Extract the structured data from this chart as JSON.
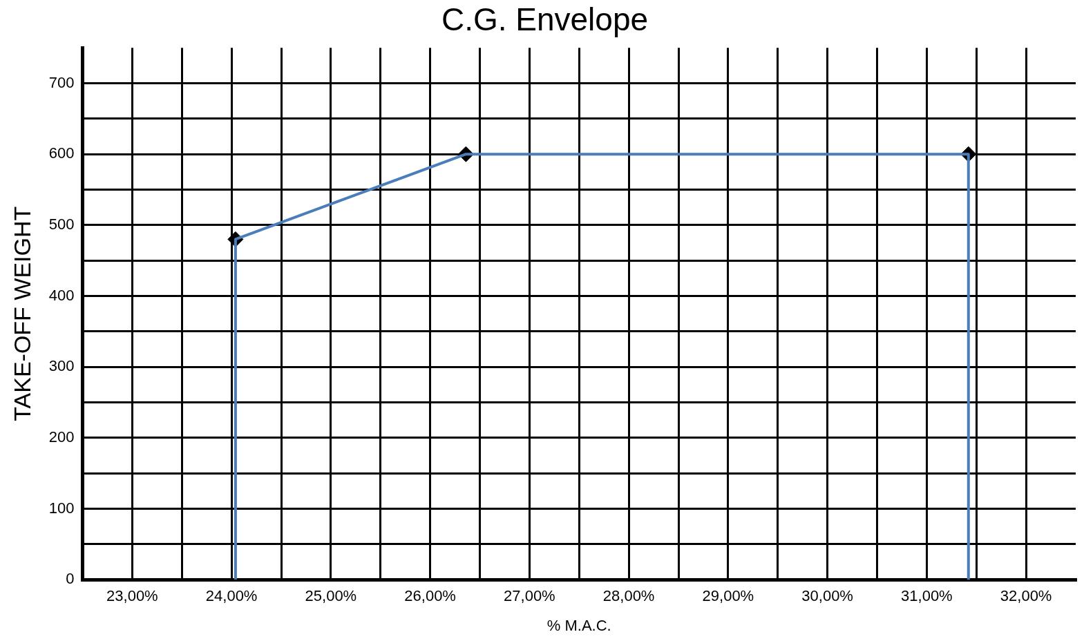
{
  "chart_data": {
    "type": "line",
    "title": "C.G. Envelope",
    "xlabel": "% M.A.C.",
    "ylabel": "TAKE-OFF WEIGHT",
    "xlim": [
      22.5,
      32.5
    ],
    "xticks": [
      {
        "value": 23,
        "label": "23,00%"
      },
      {
        "value": 23.5,
        "label": null
      },
      {
        "value": 24,
        "label": "24,00%"
      },
      {
        "value": 24.5,
        "label": null
      },
      {
        "value": 25,
        "label": "25,00%"
      },
      {
        "value": 25.5,
        "label": null
      },
      {
        "value": 26,
        "label": "26,00%"
      },
      {
        "value": 26.5,
        "label": null
      },
      {
        "value": 27,
        "label": "27,00%"
      },
      {
        "value": 27.5,
        "label": null
      },
      {
        "value": 28,
        "label": "28,00%"
      },
      {
        "value": 28.5,
        "label": null
      },
      {
        "value": 29,
        "label": "29,00%"
      },
      {
        "value": 29.5,
        "label": null
      },
      {
        "value": 30,
        "label": "30,00%"
      },
      {
        "value": 30.5,
        "label": null
      },
      {
        "value": 31,
        "label": "31,00%"
      },
      {
        "value": 31.5,
        "label": null
      },
      {
        "value": 32,
        "label": "32,00%"
      }
    ],
    "ylim": [
      0,
      750
    ],
    "yticks": [
      0,
      {
        "value": 50,
        "label": null
      },
      100,
      {
        "value": 150,
        "label": null
      },
      200,
      {
        "value": 250,
        "label": null
      },
      300,
      {
        "value": 350,
        "label": null
      },
      400,
      {
        "value": 450,
        "label": null
      },
      500,
      {
        "value": 550,
        "label": null
      },
      600,
      {
        "value": 650,
        "label": null
      },
      700
    ],
    "grid": true,
    "legend": false,
    "series": [
      {
        "type": "line",
        "color": "#4a7ebb",
        "marker": "none",
        "x": [
          24.04,
          24.04,
          26.36,
          31.42,
          31.42
        ],
        "values": [
          0,
          480,
          600,
          600,
          0
        ]
      },
      {
        "type": "scatter",
        "color": "#000000",
        "marker": "diamond",
        "x": [
          24.04,
          26.36,
          31.42
        ],
        "values": [
          480,
          600,
          600
        ]
      }
    ]
  }
}
